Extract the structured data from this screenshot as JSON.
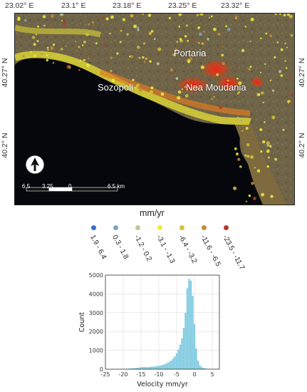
{
  "map": {
    "lon_ticks": [
      "23.02° E",
      "23.1° E",
      "23.18° E",
      "23.25° E",
      "23.32° E"
    ],
    "lat_ticks_left": [
      "40.27° N",
      "40.2° N"
    ],
    "lat_ticks_right": [
      "40.27° N",
      "40.2° N"
    ],
    "places": [
      "Portaria",
      "Sozopoli",
      "Nea Moudania"
    ],
    "scale_labels": [
      "6.5",
      "3.25",
      "0",
      "6.5 km"
    ],
    "north_icon": "north-arrow-icon"
  },
  "legend": {
    "title": "mm/yr",
    "classes": [
      {
        "label": "1.9 - 6.4",
        "color": "#3a6fc9"
      },
      {
        "label": "0.3 - 1.8",
        "color": "#7aa7c7"
      },
      {
        "label": "-1.2 - 0.2",
        "color": "#b9c9a0"
      },
      {
        "label": "-3.1 - -1.3",
        "color": "#ecec3c"
      },
      {
        "label": "-6.4 - -3.2",
        "color": "#d8c23a"
      },
      {
        "label": "-11.6 - -6.5",
        "color": "#c58a36"
      },
      {
        "label": "-23.5 - -11.7",
        "color": "#b53a2c"
      }
    ]
  },
  "chart_data": {
    "type": "bar",
    "xlabel": "Velocity mm/yr",
    "ylabel": "Count",
    "xlim": [
      -25,
      7
    ],
    "ylim": [
      0,
      5000
    ],
    "xticks": [
      "-25",
      "-20",
      "-15",
      "-10",
      "-5",
      "0",
      "5"
    ],
    "yticks": [
      "0",
      "1000",
      "2000",
      "3000",
      "4000",
      "5000"
    ],
    "grid": true,
    "bar_color": "#87cde3",
    "bins": [
      {
        "x": -21.5,
        "v": 5
      },
      {
        "x": -21.0,
        "v": 8
      },
      {
        "x": -20.5,
        "v": 10
      },
      {
        "x": -20.0,
        "v": 15
      },
      {
        "x": -19.5,
        "v": 20
      },
      {
        "x": -19.0,
        "v": 25
      },
      {
        "x": -18.5,
        "v": 30
      },
      {
        "x": -18.0,
        "v": 40
      },
      {
        "x": -17.5,
        "v": 45
      },
      {
        "x": -17.0,
        "v": 55
      },
      {
        "x": -16.5,
        "v": 65
      },
      {
        "x": -16.0,
        "v": 75
      },
      {
        "x": -15.5,
        "v": 85
      },
      {
        "x": -15.0,
        "v": 100
      },
      {
        "x": -14.5,
        "v": 115
      },
      {
        "x": -14.0,
        "v": 120
      },
      {
        "x": -13.5,
        "v": 110
      },
      {
        "x": -13.0,
        "v": 115
      },
      {
        "x": -12.5,
        "v": 120
      },
      {
        "x": -12.0,
        "v": 130
      },
      {
        "x": -11.5,
        "v": 140
      },
      {
        "x": -11.0,
        "v": 150
      },
      {
        "x": -10.5,
        "v": 165
      },
      {
        "x": -10.0,
        "v": 180
      },
      {
        "x": -9.5,
        "v": 200
      },
      {
        "x": -9.0,
        "v": 220
      },
      {
        "x": -8.5,
        "v": 250
      },
      {
        "x": -8.0,
        "v": 290
      },
      {
        "x": -7.5,
        "v": 340
      },
      {
        "x": -7.0,
        "v": 400
      },
      {
        "x": -6.5,
        "v": 460
      },
      {
        "x": -6.0,
        "v": 560
      },
      {
        "x": -5.5,
        "v": 680
      },
      {
        "x": -5.0,
        "v": 840
      },
      {
        "x": -4.5,
        "v": 1050
      },
      {
        "x": -4.0,
        "v": 1300
      },
      {
        "x": -3.5,
        "v": 1650
      },
      {
        "x": -3.0,
        "v": 2200
      },
      {
        "x": -2.5,
        "v": 3000
      },
      {
        "x": -2.0,
        "v": 4300
      },
      {
        "x": -1.5,
        "v": 4800
      },
      {
        "x": -1.0,
        "v": 4700
      },
      {
        "x": -0.5,
        "v": 3900
      },
      {
        "x": 0.0,
        "v": 2400
      },
      {
        "x": 0.5,
        "v": 1100
      },
      {
        "x": 1.0,
        "v": 450
      },
      {
        "x": 1.5,
        "v": 220
      },
      {
        "x": 2.0,
        "v": 120
      },
      {
        "x": 2.5,
        "v": 70
      },
      {
        "x": 3.0,
        "v": 40
      },
      {
        "x": 3.5,
        "v": 25
      },
      {
        "x": 4.0,
        "v": 15
      },
      {
        "x": 4.5,
        "v": 10
      },
      {
        "x": 5.0,
        "v": 6
      }
    ],
    "bin_width": 0.5
  }
}
